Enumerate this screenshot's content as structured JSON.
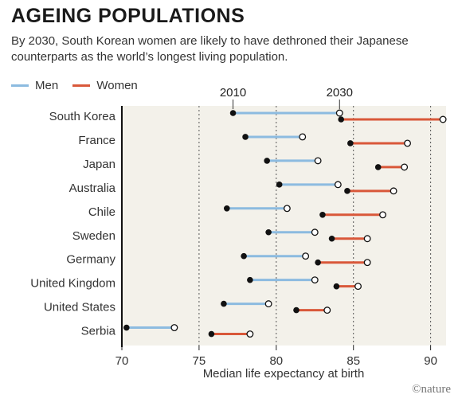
{
  "title": "AGEING POPULATIONS",
  "subtitle": "By 2030, South Korean women are likely to have dethroned their Japanese counterparts as the world’s longest living population.",
  "credit": "©nature",
  "colors": {
    "men": "#8cbbe0",
    "women": "#d9583a",
    "plot_bg": "#f3f1ea"
  },
  "chart_data": {
    "type": "dumbbell",
    "legend": [
      {
        "key": "men",
        "label": "Men"
      },
      {
        "key": "women",
        "label": "Women"
      }
    ],
    "year_labels": {
      "start": "2010",
      "end": "2030"
    },
    "xlabel": "Median life expectancy at birth",
    "xlim": [
      70,
      91
    ],
    "xticks": [
      70,
      75,
      80,
      85,
      90
    ],
    "categories": [
      "South Korea",
      "France",
      "Japan",
      "Australia",
      "Chile",
      "Sweden",
      "Germany",
      "United Kingdom",
      "United States",
      "Serbia"
    ],
    "series": [
      {
        "key": "men",
        "name": "Men",
        "start": [
          77.2,
          78.0,
          79.4,
          80.2,
          76.8,
          79.5,
          77.9,
          78.3,
          76.6,
          70.3
        ],
        "end": [
          84.1,
          81.7,
          82.7,
          84.0,
          80.7,
          82.5,
          81.9,
          82.5,
          79.5,
          73.4
        ]
      },
      {
        "key": "women",
        "name": "Women",
        "start": [
          84.2,
          84.8,
          86.6,
          84.6,
          83.0,
          83.6,
          82.7,
          83.9,
          81.3,
          75.8
        ],
        "end": [
          90.8,
          88.5,
          88.3,
          87.6,
          86.9,
          85.9,
          85.9,
          85.3,
          83.3,
          78.3
        ]
      }
    ]
  }
}
